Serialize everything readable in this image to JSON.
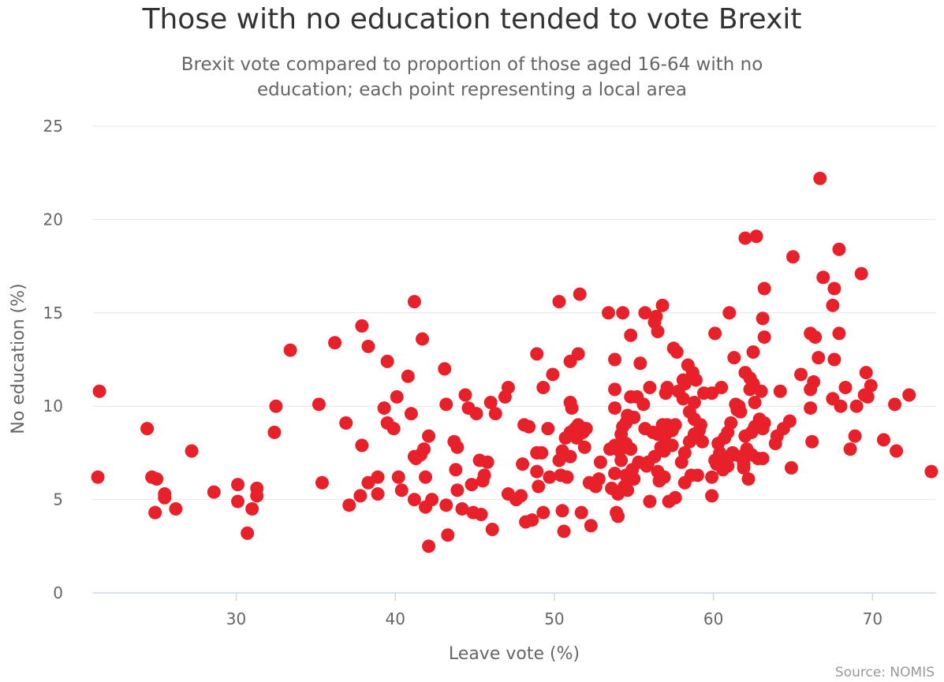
{
  "chart_data": {
    "type": "scatter",
    "title": "Those with no education tended to vote Brexit",
    "subtitle": "Brexit vote compared to proportion of those aged 16-64 with no education; each point representing a local area",
    "xlabel": "Leave vote (%)",
    "ylabel": "No education (%)",
    "xlim": [
      21,
      74
    ],
    "ylim": [
      0,
      25
    ],
    "xticks": [
      30,
      40,
      50,
      60,
      70
    ],
    "yticks": [
      0,
      5,
      10,
      15,
      20,
      25
    ],
    "grid": true,
    "marker_color": "#e8202a",
    "credit": "Source: NOMIS",
    "points": [
      [
        21.4,
        10.8
      ],
      [
        21.3,
        6.2
      ],
      [
        24.4,
        8.8
      ],
      [
        24.7,
        6.2
      ],
      [
        25.0,
        6.1
      ],
      [
        25.5,
        5.3
      ],
      [
        25.5,
        5.1
      ],
      [
        24.9,
        4.3
      ],
      [
        26.2,
        4.5
      ],
      [
        27.2,
        7.6
      ],
      [
        28.6,
        5.4
      ],
      [
        30.1,
        5.8
      ],
      [
        30.1,
        4.9
      ],
      [
        31.0,
        4.5
      ],
      [
        30.7,
        3.2
      ],
      [
        31.3,
        5.6
      ],
      [
        31.3,
        5.2
      ],
      [
        32.4,
        8.6
      ],
      [
        32.5,
        10.0
      ],
      [
        33.4,
        13.0
      ],
      [
        35.2,
        10.1
      ],
      [
        35.4,
        5.9
      ],
      [
        36.2,
        13.4
      ],
      [
        36.9,
        9.1
      ],
      [
        37.1,
        4.7
      ],
      [
        37.9,
        7.9
      ],
      [
        37.9,
        14.3
      ],
      [
        37.8,
        5.2
      ],
      [
        38.3,
        13.2
      ],
      [
        38.3,
        5.9
      ],
      [
        38.9,
        6.2
      ],
      [
        38.9,
        5.3
      ],
      [
        39.3,
        9.9
      ],
      [
        39.5,
        12.4
      ],
      [
        39.5,
        9.1
      ],
      [
        39.9,
        8.8
      ],
      [
        40.1,
        10.5
      ],
      [
        40.2,
        6.2
      ],
      [
        40.4,
        5.5
      ],
      [
        40.8,
        11.6
      ],
      [
        41.0,
        9.6
      ],
      [
        41.2,
        15.6
      ],
      [
        41.2,
        7.3
      ],
      [
        41.3,
        7.2
      ],
      [
        41.2,
        5.0
      ],
      [
        41.6,
        7.4
      ],
      [
        41.7,
        13.6
      ],
      [
        41.8,
        7.7
      ],
      [
        41.9,
        6.2
      ],
      [
        41.9,
        4.6
      ],
      [
        42.1,
        8.4
      ],
      [
        42.1,
        2.5
      ],
      [
        42.3,
        5.0
      ],
      [
        43.1,
        12.0
      ],
      [
        43.2,
        10.1
      ],
      [
        43.2,
        4.7
      ],
      [
        43.3,
        3.1
      ],
      [
        43.7,
        8.1
      ],
      [
        43.8,
        6.6
      ],
      [
        43.9,
        7.8
      ],
      [
        43.9,
        5.5
      ],
      [
        44.2,
        4.5
      ],
      [
        44.4,
        10.6
      ],
      [
        44.6,
        9.9
      ],
      [
        44.8,
        5.8
      ],
      [
        44.9,
        4.3
      ],
      [
        45.1,
        9.6
      ],
      [
        45.3,
        7.1
      ],
      [
        45.4,
        4.2
      ],
      [
        45.5,
        6.0
      ],
      [
        45.6,
        6.3
      ],
      [
        45.8,
        7.0
      ],
      [
        46.0,
        10.2
      ],
      [
        46.1,
        3.4
      ],
      [
        46.3,
        9.6
      ],
      [
        46.9,
        10.5
      ],
      [
        47.1,
        11.0
      ],
      [
        47.1,
        5.3
      ],
      [
        47.6,
        5.0
      ],
      [
        47.9,
        5.2
      ],
      [
        48.0,
        6.9
      ],
      [
        48.1,
        9.0
      ],
      [
        48.2,
        3.8
      ],
      [
        48.4,
        8.9
      ],
      [
        48.6,
        3.9
      ],
      [
        48.9,
        12.8
      ],
      [
        48.9,
        7.5
      ],
      [
        48.9,
        6.5
      ],
      [
        49.0,
        5.7
      ],
      [
        49.2,
        7.5
      ],
      [
        49.3,
        11.0
      ],
      [
        49.3,
        4.3
      ],
      [
        49.6,
        8.8
      ],
      [
        49.7,
        6.2
      ],
      [
        49.9,
        11.7
      ],
      [
        50.3,
        15.6
      ],
      [
        50.3,
        7.1
      ],
      [
        50.4,
        6.3
      ],
      [
        50.5,
        7.6
      ],
      [
        50.5,
        4.4
      ],
      [
        50.6,
        3.3
      ],
      [
        50.7,
        8.3
      ],
      [
        50.8,
        6.2
      ],
      [
        51.0,
        12.4
      ],
      [
        51.0,
        10.2
      ],
      [
        51.0,
        8.6
      ],
      [
        51.0,
        7.3
      ],
      [
        51.1,
        9.9
      ],
      [
        51.3,
        8.8
      ],
      [
        51.4,
        8.3
      ],
      [
        51.5,
        12.8
      ],
      [
        51.5,
        9.0
      ],
      [
        51.6,
        16.0
      ],
      [
        51.7,
        4.3
      ],
      [
        51.8,
        8.6
      ],
      [
        51.9,
        7.8
      ],
      [
        52.0,
        8.8
      ],
      [
        52.2,
        5.9
      ],
      [
        52.3,
        3.6
      ],
      [
        52.6,
        5.7
      ],
      [
        52.8,
        6.1
      ],
      [
        52.9,
        7.0
      ],
      [
        53.4,
        15.0
      ],
      [
        53.5,
        7.7
      ],
      [
        53.6,
        5.6
      ],
      [
        53.8,
        12.5
      ],
      [
        53.8,
        10.9
      ],
      [
        53.8,
        9.9
      ],
      [
        53.8,
        7.9
      ],
      [
        53.8,
        6.4
      ],
      [
        53.9,
        4.3
      ],
      [
        54.0,
        5.3
      ],
      [
        54.0,
        4.1
      ],
      [
        54.1,
        7.6
      ],
      [
        54.2,
        8.5
      ],
      [
        54.2,
        7.1
      ],
      [
        54.3,
        15.0
      ],
      [
        54.3,
        8.9
      ],
      [
        54.4,
        5.7
      ],
      [
        54.5,
        9.1
      ],
      [
        54.5,
        8.0
      ],
      [
        54.5,
        6.3
      ],
      [
        54.6,
        5.5
      ],
      [
        54.6,
        9.5
      ],
      [
        54.8,
        13.8
      ],
      [
        54.8,
        10.5
      ],
      [
        54.8,
        7.7
      ],
      [
        54.9,
        6.6
      ],
      [
        55.0,
        9.4
      ],
      [
        55.0,
        6.1
      ],
      [
        55.2,
        10.5
      ],
      [
        55.3,
        7.0
      ],
      [
        55.4,
        12.3
      ],
      [
        55.6,
        10.1
      ],
      [
        55.7,
        15.0
      ],
      [
        55.7,
        8.8
      ],
      [
        55.8,
        6.8
      ],
      [
        55.9,
        7.0
      ],
      [
        56.0,
        11.0
      ],
      [
        56.0,
        4.9
      ],
      [
        56.2,
        8.6
      ],
      [
        56.3,
        14.5
      ],
      [
        56.3,
        7.3
      ],
      [
        56.4,
        14.8
      ],
      [
        56.5,
        14.0
      ],
      [
        56.5,
        8.5
      ],
      [
        56.5,
        6.5
      ],
      [
        56.6,
        6.0
      ],
      [
        56.7,
        7.8
      ],
      [
        56.8,
        15.4
      ],
      [
        56.8,
        9.0
      ],
      [
        56.9,
        8.9
      ],
      [
        56.9,
        7.6
      ],
      [
        56.9,
        6.2
      ],
      [
        57.0,
        10.7
      ],
      [
        57.0,
        8.5
      ],
      [
        57.0,
        8.0
      ],
      [
        57.1,
        11.0
      ],
      [
        57.1,
        9.0
      ],
      [
        57.2,
        4.9
      ],
      [
        57.4,
        8.7
      ],
      [
        57.4,
        7.9
      ],
      [
        57.5,
        13.1
      ],
      [
        57.6,
        9.0
      ],
      [
        57.6,
        5.1
      ],
      [
        57.7,
        12.9
      ],
      [
        57.8,
        10.8
      ],
      [
        58.0,
        7.0
      ],
      [
        58.1,
        10.4
      ],
      [
        58.1,
        11.4
      ],
      [
        58.2,
        11.2
      ],
      [
        58.2,
        7.5
      ],
      [
        58.2,
        5.9
      ],
      [
        58.4,
        12.2
      ],
      [
        58.5,
        9.7
      ],
      [
        58.5,
        8.1
      ],
      [
        58.6,
        6.3
      ],
      [
        58.7,
        11.8
      ],
      [
        58.8,
        10.2
      ],
      [
        58.8,
        9.3
      ],
      [
        58.8,
        8.5
      ],
      [
        58.9,
        11.4
      ],
      [
        59.0,
        6.3
      ],
      [
        59.1,
        8.7
      ],
      [
        59.2,
        9.0
      ],
      [
        59.3,
        8.1
      ],
      [
        59.4,
        10.7
      ],
      [
        59.9,
        10.7
      ],
      [
        59.9,
        6.2
      ],
      [
        59.9,
        5.2
      ],
      [
        60.1,
        13.9
      ],
      [
        60.1,
        7.1
      ],
      [
        60.2,
        6.9
      ],
      [
        60.3,
        8.0
      ],
      [
        60.4,
        7.5
      ],
      [
        60.5,
        11.0
      ],
      [
        60.5,
        7.2
      ],
      [
        60.6,
        6.6
      ],
      [
        60.7,
        8.3
      ],
      [
        60.8,
        7.0
      ],
      [
        60.9,
        6.8
      ],
      [
        60.9,
        8.6
      ],
      [
        61.0,
        15.0
      ],
      [
        61.1,
        9.1
      ],
      [
        61.2,
        7.5
      ],
      [
        61.3,
        7.4
      ],
      [
        61.3,
        12.6
      ],
      [
        61.4,
        10.1
      ],
      [
        61.5,
        9.8
      ],
      [
        61.6,
        10.0
      ],
      [
        61.7,
        9.7
      ],
      [
        61.7,
        7.3
      ],
      [
        61.9,
        6.9
      ],
      [
        61.9,
        6.7
      ],
      [
        62.0,
        19.0
      ],
      [
        62.0,
        11.8
      ],
      [
        62.0,
        8.4
      ],
      [
        62.1,
        7.7
      ],
      [
        62.2,
        6.1
      ],
      [
        62.3,
        11.5
      ],
      [
        62.3,
        10.9
      ],
      [
        62.4,
        7.4
      ],
      [
        62.4,
        8.6
      ],
      [
        62.5,
        12.9
      ],
      [
        62.5,
        11.2
      ],
      [
        62.6,
        10.2
      ],
      [
        62.6,
        8.9
      ],
      [
        62.7,
        19.1
      ],
      [
        62.8,
        7.2
      ],
      [
        62.9,
        9.3
      ],
      [
        63.0,
        10.8
      ],
      [
        63.1,
        8.8
      ],
      [
        63.1,
        7.2
      ],
      [
        63.1,
        14.7
      ],
      [
        63.2,
        16.3
      ],
      [
        63.2,
        13.7
      ],
      [
        63.2,
        9.1
      ],
      [
        63.9,
        8.0
      ],
      [
        64.0,
        8.4
      ],
      [
        64.2,
        10.8
      ],
      [
        64.4,
        8.8
      ],
      [
        64.8,
        9.2
      ],
      [
        64.9,
        6.7
      ],
      [
        65.0,
        18.0
      ],
      [
        65.5,
        11.7
      ],
      [
        66.1,
        13.9
      ],
      [
        66.1,
        10.9
      ],
      [
        66.1,
        9.9
      ],
      [
        66.2,
        8.1
      ],
      [
        66.3,
        11.3
      ],
      [
        66.4,
        13.7
      ],
      [
        66.6,
        12.6
      ],
      [
        66.7,
        22.2
      ],
      [
        66.9,
        16.9
      ],
      [
        67.5,
        10.4
      ],
      [
        67.5,
        15.4
      ],
      [
        67.6,
        16.3
      ],
      [
        67.6,
        12.5
      ],
      [
        67.9,
        13.9
      ],
      [
        67.9,
        18.4
      ],
      [
        68.0,
        10.0
      ],
      [
        68.3,
        11.0
      ],
      [
        68.6,
        7.7
      ],
      [
        68.9,
        8.4
      ],
      [
        69.0,
        10.0
      ],
      [
        69.3,
        17.1
      ],
      [
        69.5,
        10.6
      ],
      [
        69.6,
        11.8
      ],
      [
        69.7,
        10.5
      ],
      [
        69.9,
        11.1
      ],
      [
        70.7,
        8.2
      ],
      [
        71.4,
        10.1
      ],
      [
        71.5,
        7.6
      ],
      [
        72.3,
        10.6
      ],
      [
        73.7,
        6.5
      ]
    ]
  }
}
